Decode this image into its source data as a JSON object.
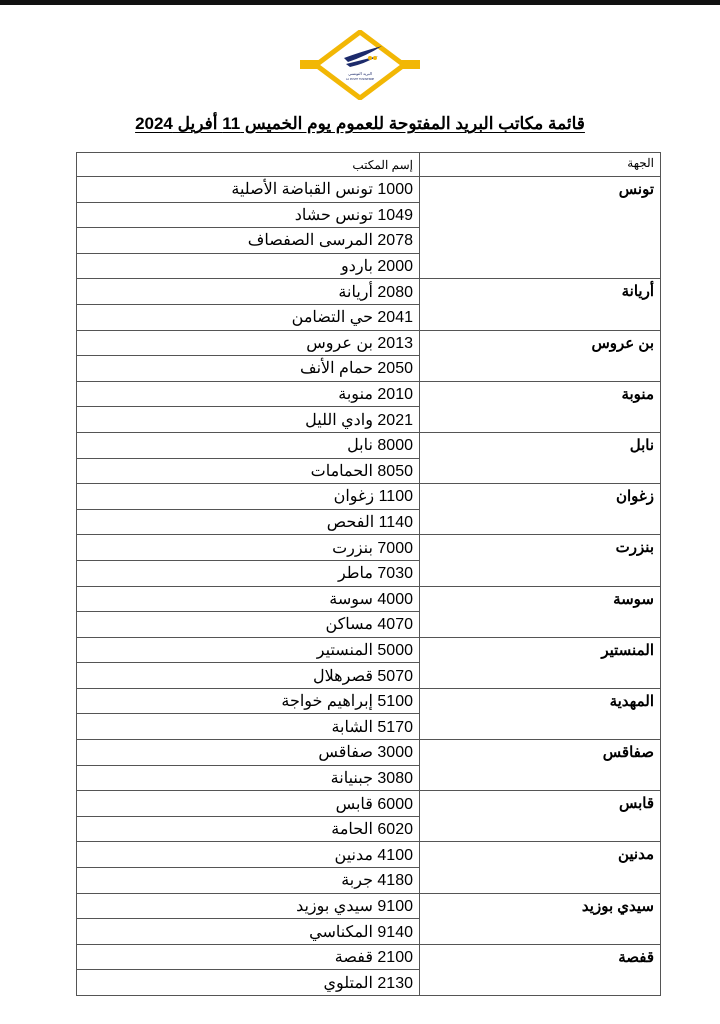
{
  "logo": {
    "text_ar": "البريد التونسي",
    "text_fr": "LA POSTE TUNISIENNE",
    "colors": {
      "diamond": "#f2b705",
      "navy": "#1c2a6b"
    }
  },
  "title": "قائمة مكاتب البريد  المفتوحة للعموم يوم الخميس 11 أفريل 2024",
  "table": {
    "headers": {
      "region": "الجهة",
      "office": "إسم المكتب"
    },
    "regions": [
      {
        "name": "تونس",
        "offices": [
          "1000 تونس القباضة الأصلية",
          "1049 تونس حشاد",
          "2078 المرسى الصفصاف",
          "2000 باردو"
        ]
      },
      {
        "name": "أريانة",
        "offices": [
          "2080 أريانة",
          "2041 حي التضامن"
        ]
      },
      {
        "name": "بن عروس",
        "offices": [
          "2013 بن عروس",
          "2050 حمام الأنف"
        ]
      },
      {
        "name": "منوبة",
        "offices": [
          "2010 منوبة",
          "2021 وادي الليل"
        ]
      },
      {
        "name": "نابل",
        "offices": [
          "8000 نابل",
          "8050 الحمامات"
        ]
      },
      {
        "name": "زغوان",
        "offices": [
          "1100 زغوان",
          "1140 الفحص"
        ]
      },
      {
        "name": "بنزرت",
        "offices": [
          "7000 بنزرت",
          "7030 ماطر"
        ]
      },
      {
        "name": "سوسة",
        "offices": [
          "4000 سوسة",
          "4070 مساكن"
        ]
      },
      {
        "name": "المنستير",
        "offices": [
          "5000 المنستير",
          "5070  قصرهلال"
        ]
      },
      {
        "name": "المهدية",
        "offices": [
          "5100 إبراهيم خواجة",
          "5170 الشابة"
        ]
      },
      {
        "name": "صفاقس",
        "offices": [
          "3000 صفاقس",
          "3080 جبنيانة"
        ]
      },
      {
        "name": "قابس",
        "offices": [
          "6000 قابس",
          "6020 الحامة"
        ]
      },
      {
        "name": "مدنين",
        "offices": [
          "4100 مدنين",
          "4180 جربة"
        ]
      },
      {
        "name": "سيدي بوزيد",
        "offices": [
          "9100 سيدي بوزيد",
          "9140 المكناسي"
        ]
      },
      {
        "name": "قفصة",
        "offices": [
          "2100 قفصة",
          "2130 المتلوي"
        ]
      }
    ]
  }
}
